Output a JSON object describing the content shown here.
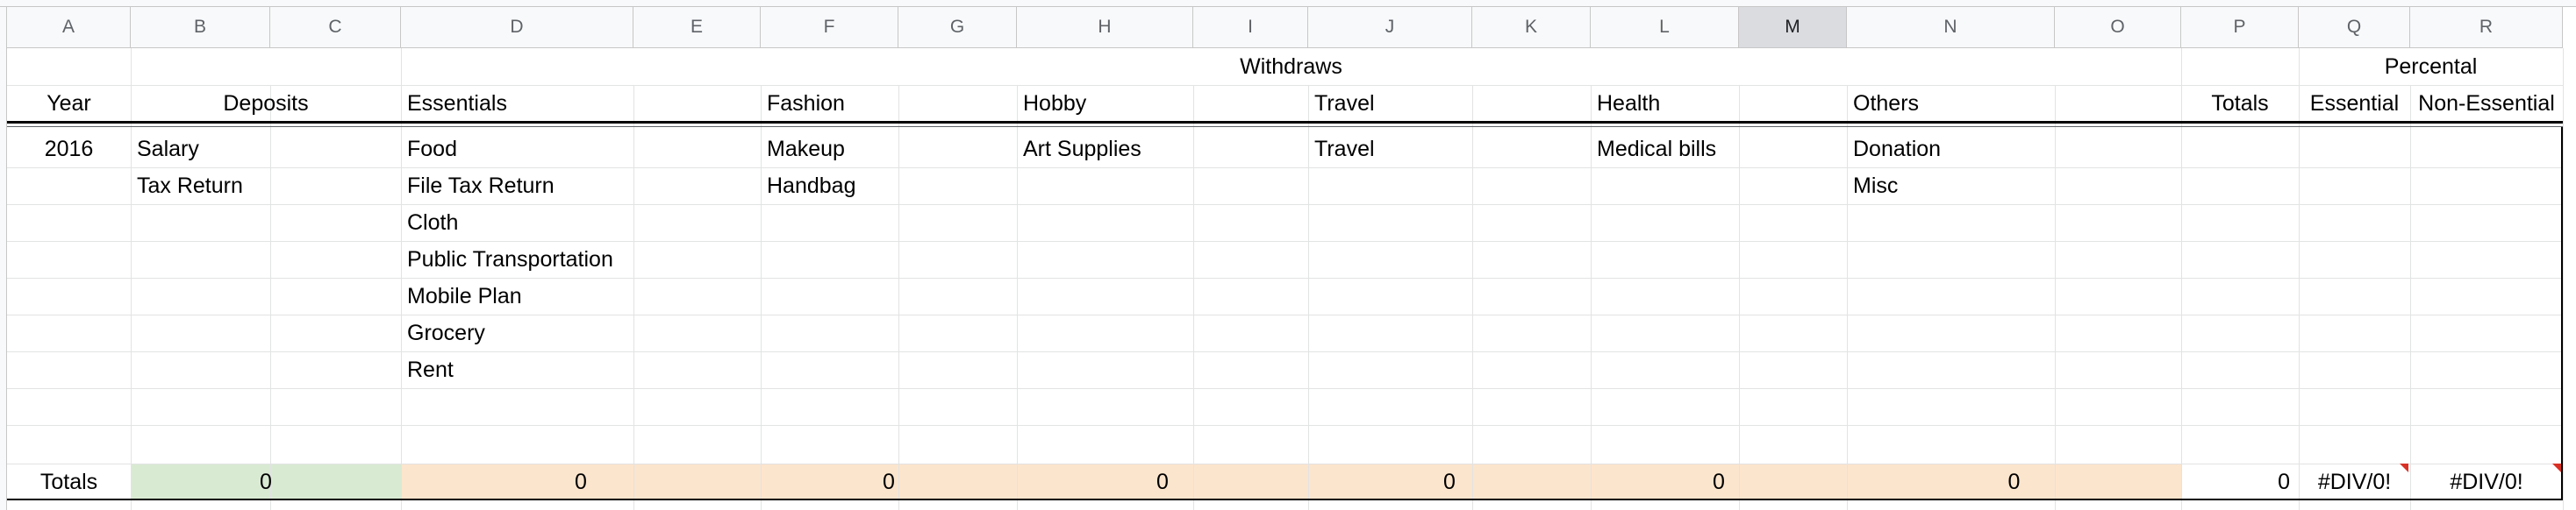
{
  "columns": [
    "A",
    "B",
    "C",
    "D",
    "E",
    "F",
    "G",
    "H",
    "I",
    "J",
    "K",
    "L",
    "M",
    "N",
    "O",
    "P",
    "Q",
    "R"
  ],
  "selected_column": "M",
  "colors": {
    "deposits_fill": "#d9ead3",
    "withdraws_fill": "#fce5cd",
    "error_flag": "#d93025",
    "header_bg": "#f8f9fa",
    "gridline": "#e2e3e3"
  },
  "sheet": {
    "row1": {
      "withdraws": "Withdraws",
      "percental": "Percental"
    },
    "row2": {
      "year": "Year",
      "deposits": "Deposits",
      "essentials": "Essentials",
      "fashion": "Fashion",
      "hobby": "Hobby",
      "travel": "Travel",
      "health": "Health",
      "others": "Others",
      "totals": "Totals",
      "essential": "Essential",
      "non_essential": "Non-Essential"
    },
    "year_value": "2016",
    "deposits_items": [
      "Salary",
      "Tax Return"
    ],
    "essentials_items": [
      "Food",
      "File Tax Return",
      "Cloth",
      "Public Transportation",
      "Mobile Plan",
      "Grocery",
      "Rent"
    ],
    "fashion_items": [
      "Makeup",
      "Handbag"
    ],
    "hobby_items": [
      "Art Supplies"
    ],
    "travel_items": [
      "Travel"
    ],
    "health_items": [
      "Medical bills"
    ],
    "others_items": [
      "Donation",
      "Misc"
    ],
    "totals_row": {
      "label": "Totals",
      "deposits": "0",
      "essentials": "0",
      "fashion": "0",
      "hobby": "0",
      "travel": "0",
      "health": "0",
      "others": "0",
      "totals": "0",
      "essential_pct": "#DIV/0!",
      "non_essential_pct": "#DIV/0!"
    }
  }
}
